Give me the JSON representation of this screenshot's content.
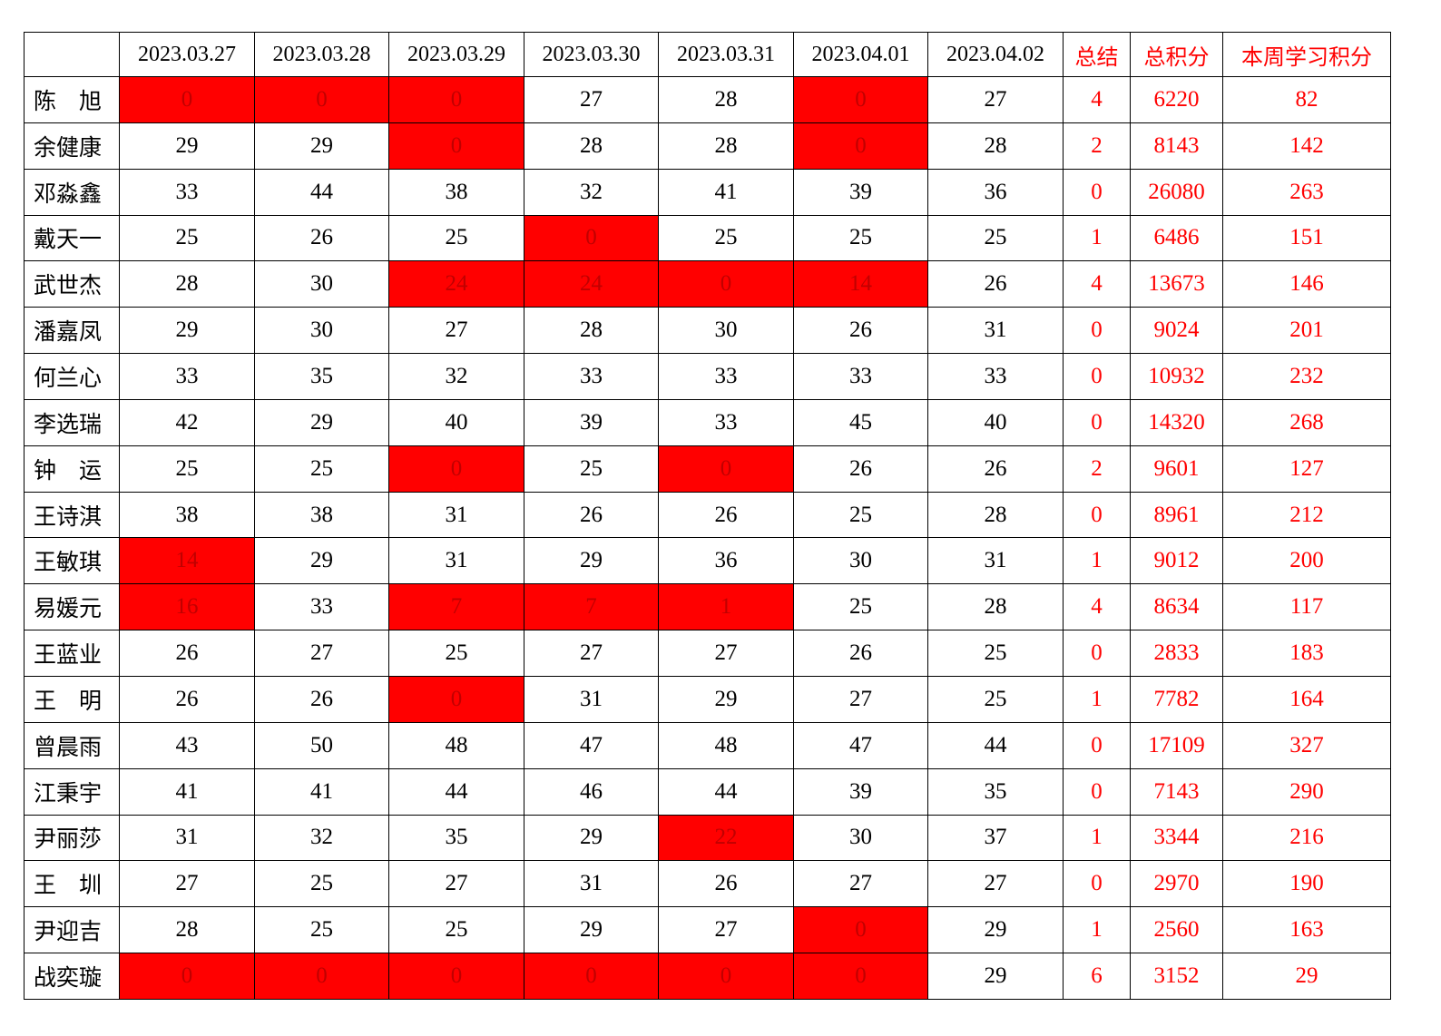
{
  "header": {
    "columns": [
      "",
      "2023.03.27",
      "2023.03.28",
      "2023.03.29",
      "2023.03.30",
      "2023.03.31",
      "2023.04.01",
      "2023.04.02",
      "总结",
      "总积分",
      "本周学习积分"
    ]
  },
  "highlight_color": "#ff0000",
  "rows": [
    {
      "name": "陈　旭",
      "days": [
        0,
        0,
        0,
        27,
        28,
        0,
        27
      ],
      "flagged": [
        true,
        true,
        true,
        false,
        false,
        true,
        false
      ],
      "summary": 4,
      "total": 6220,
      "weekly": 82
    },
    {
      "name": "余健康",
      "days": [
        29,
        29,
        0,
        28,
        28,
        0,
        28
      ],
      "flagged": [
        false,
        false,
        true,
        false,
        false,
        true,
        false
      ],
      "summary": 2,
      "total": 8143,
      "weekly": 142
    },
    {
      "name": "邓淼鑫",
      "days": [
        33,
        44,
        38,
        32,
        41,
        39,
        36
      ],
      "flagged": [
        false,
        false,
        false,
        false,
        false,
        false,
        false
      ],
      "summary": 0,
      "total": 26080,
      "weekly": 263
    },
    {
      "name": "戴天一",
      "days": [
        25,
        26,
        25,
        0,
        25,
        25,
        25
      ],
      "flagged": [
        false,
        false,
        false,
        true,
        false,
        false,
        false
      ],
      "summary": 1,
      "total": 6486,
      "weekly": 151
    },
    {
      "name": "武世杰",
      "days": [
        28,
        30,
        24,
        24,
        0,
        14,
        26
      ],
      "flagged": [
        false,
        false,
        true,
        true,
        true,
        true,
        false
      ],
      "summary": 4,
      "total": 13673,
      "weekly": 146
    },
    {
      "name": "潘嘉凤",
      "days": [
        29,
        30,
        27,
        28,
        30,
        26,
        31
      ],
      "flagged": [
        false,
        false,
        false,
        false,
        false,
        false,
        false
      ],
      "summary": 0,
      "total": 9024,
      "weekly": 201
    },
    {
      "name": "何兰心",
      "days": [
        33,
        35,
        32,
        33,
        33,
        33,
        33
      ],
      "flagged": [
        false,
        false,
        false,
        false,
        false,
        false,
        false
      ],
      "summary": 0,
      "total": 10932,
      "weekly": 232
    },
    {
      "name": "李选瑞",
      "days": [
        42,
        29,
        40,
        39,
        33,
        45,
        40
      ],
      "flagged": [
        false,
        false,
        false,
        false,
        false,
        false,
        false
      ],
      "summary": 0,
      "total": 14320,
      "weekly": 268
    },
    {
      "name": "钟　运",
      "days": [
        25,
        25,
        0,
        25,
        0,
        26,
        26
      ],
      "flagged": [
        false,
        false,
        true,
        false,
        true,
        false,
        false
      ],
      "summary": 2,
      "total": 9601,
      "weekly": 127
    },
    {
      "name": "王诗淇",
      "days": [
        38,
        38,
        31,
        26,
        26,
        25,
        28
      ],
      "flagged": [
        false,
        false,
        false,
        false,
        false,
        false,
        false
      ],
      "summary": 0,
      "total": 8961,
      "weekly": 212
    },
    {
      "name": "王敏琪",
      "days": [
        14,
        29,
        31,
        29,
        36,
        30,
        31
      ],
      "flagged": [
        true,
        false,
        false,
        false,
        false,
        false,
        false
      ],
      "summary": 1,
      "total": 9012,
      "weekly": 200
    },
    {
      "name": "易媛元",
      "days": [
        16,
        33,
        7,
        7,
        1,
        25,
        28
      ],
      "flagged": [
        true,
        false,
        true,
        true,
        true,
        false,
        false
      ],
      "summary": 4,
      "total": 8634,
      "weekly": 117
    },
    {
      "name": "王蓝业",
      "days": [
        26,
        27,
        25,
        27,
        27,
        26,
        25
      ],
      "flagged": [
        false,
        false,
        false,
        false,
        false,
        false,
        false
      ],
      "summary": 0,
      "total": 2833,
      "weekly": 183
    },
    {
      "name": "王　明",
      "days": [
        26,
        26,
        0,
        31,
        29,
        27,
        25
      ],
      "flagged": [
        false,
        false,
        true,
        false,
        false,
        false,
        false
      ],
      "summary": 1,
      "total": 7782,
      "weekly": 164
    },
    {
      "name": "曾晨雨",
      "days": [
        43,
        50,
        48,
        47,
        48,
        47,
        44
      ],
      "flagged": [
        false,
        false,
        false,
        false,
        false,
        false,
        false
      ],
      "summary": 0,
      "total": 17109,
      "weekly": 327
    },
    {
      "name": "江秉宇",
      "days": [
        41,
        41,
        44,
        46,
        44,
        39,
        35
      ],
      "flagged": [
        false,
        false,
        false,
        false,
        false,
        false,
        false
      ],
      "summary": 0,
      "total": 7143,
      "weekly": 290
    },
    {
      "name": "尹丽莎",
      "days": [
        31,
        32,
        35,
        29,
        22,
        30,
        37
      ],
      "flagged": [
        false,
        false,
        false,
        false,
        true,
        false,
        false
      ],
      "summary": 1,
      "total": 3344,
      "weekly": 216
    },
    {
      "name": "王　圳",
      "days": [
        27,
        25,
        27,
        31,
        26,
        27,
        27
      ],
      "flagged": [
        false,
        false,
        false,
        false,
        false,
        false,
        false
      ],
      "summary": 0,
      "total": 2970,
      "weekly": 190
    },
    {
      "name": "尹迎吉",
      "days": [
        28,
        25,
        25,
        29,
        27,
        0,
        29
      ],
      "flagged": [
        false,
        false,
        false,
        false,
        false,
        true,
        false
      ],
      "summary": 1,
      "total": 2560,
      "weekly": 163
    },
    {
      "name": "战奕璇",
      "days": [
        0,
        0,
        0,
        0,
        0,
        0,
        29
      ],
      "flagged": [
        true,
        true,
        true,
        true,
        true,
        true,
        false
      ],
      "summary": 6,
      "total": 3152,
      "weekly": 29
    }
  ]
}
